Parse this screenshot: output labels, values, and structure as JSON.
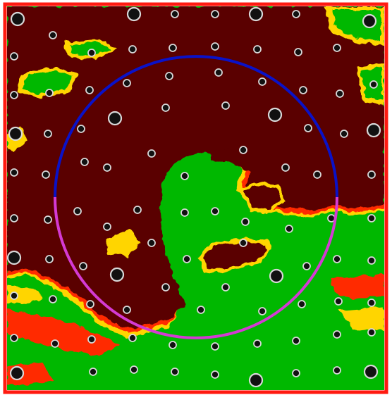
{
  "map_view": {
    "colors": {
      "frame": "#ff1a10",
      "background": "#ffffff",
      "dry_region": "#5a0600",
      "wet_region": "#00b800",
      "edge_hot": "#ff2a00",
      "edge_warm": "#ffd500",
      "circle_upper_arc": "#0a12c8",
      "circle_lower_arc": "#d43ad4",
      "marker_fill": "#111111",
      "marker_ring": "#d8d8d8"
    },
    "marker_sizes": [
      "small",
      "large"
    ],
    "circle_arcs": [
      "upper",
      "lower"
    ]
  }
}
